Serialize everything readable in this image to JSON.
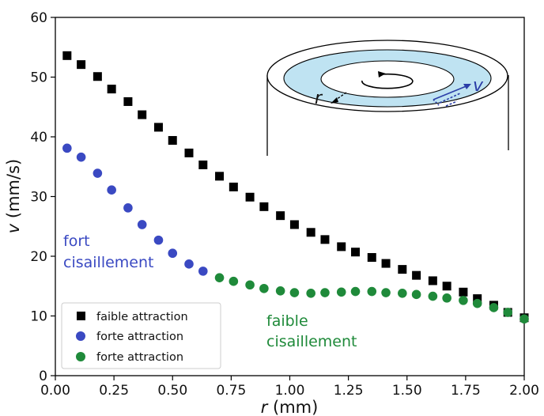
{
  "chart_data": {
    "type": "scatter",
    "xlabel_var": "r",
    "xlabel_unit": " (mm)",
    "ylabel_var": "v",
    "ylabel_unit": " (mm/s)",
    "xlim": [
      0,
      2.0
    ],
    "ylim": [
      0,
      60
    ],
    "xticks": [
      "0.00",
      "0.25",
      "0.50",
      "0.75",
      "1.00",
      "1.25",
      "1.50",
      "1.75",
      "2.00"
    ],
    "yticks": [
      "0",
      "10",
      "20",
      "30",
      "40",
      "50",
      "60"
    ],
    "grid": false,
    "legend_position": "lower-left",
    "series": [
      {
        "name": "faible attraction",
        "marker": "square",
        "color": "#000000",
        "x": [
          0.05,
          0.11,
          0.18,
          0.24,
          0.31,
          0.37,
          0.44,
          0.5,
          0.57,
          0.63,
          0.7,
          0.76,
          0.83,
          0.89,
          0.96,
          1.02,
          1.09,
          1.15,
          1.22,
          1.28,
          1.35,
          1.41,
          1.48,
          1.54,
          1.61,
          1.67,
          1.74,
          1.8,
          1.87,
          1.93,
          2.0
        ],
        "y": [
          53.6,
          52.1,
          50.1,
          48.0,
          45.9,
          43.7,
          41.6,
          39.4,
          37.3,
          35.3,
          33.4,
          31.6,
          29.9,
          28.3,
          26.8,
          25.3,
          24.0,
          22.8,
          21.6,
          20.7,
          19.8,
          18.8,
          17.8,
          16.8,
          15.9,
          15.0,
          14.0,
          12.9,
          11.8,
          10.6,
          9.7
        ]
      },
      {
        "name": "forte attraction",
        "marker": "circle",
        "color": "#3a49c2",
        "x": [
          0.05,
          0.11,
          0.18,
          0.24,
          0.31,
          0.37,
          0.44,
          0.5,
          0.57,
          0.63
        ],
        "y": [
          38.1,
          36.6,
          33.9,
          31.1,
          28.1,
          25.3,
          22.7,
          20.5,
          18.7,
          17.5
        ]
      },
      {
        "name": "forte attraction",
        "marker": "circle",
        "color": "#1f8a3a",
        "x": [
          0.7,
          0.76,
          0.83,
          0.89,
          0.96,
          1.02,
          1.09,
          1.15,
          1.22,
          1.28,
          1.35,
          1.41,
          1.48,
          1.54,
          1.61,
          1.67,
          1.74,
          1.8,
          1.87,
          1.93,
          2.0
        ],
        "y": [
          16.4,
          15.8,
          15.2,
          14.6,
          14.2,
          13.9,
          13.8,
          13.9,
          14.0,
          14.1,
          14.1,
          13.9,
          13.8,
          13.6,
          13.3,
          13.0,
          12.6,
          12.1,
          11.4,
          10.6,
          9.5
        ]
      }
    ],
    "annotations": [
      {
        "lines": [
          "fort",
          "cisaillement"
        ],
        "color": "#3a49c2"
      },
      {
        "lines": [
          "faible",
          "cisaillement"
        ],
        "color": "#1f8a3a"
      }
    ],
    "inset": {
      "label_r": "r",
      "label_v": "v",
      "ring_color": "#bfe3f2",
      "arrow_color": "#2b3ea8"
    }
  }
}
